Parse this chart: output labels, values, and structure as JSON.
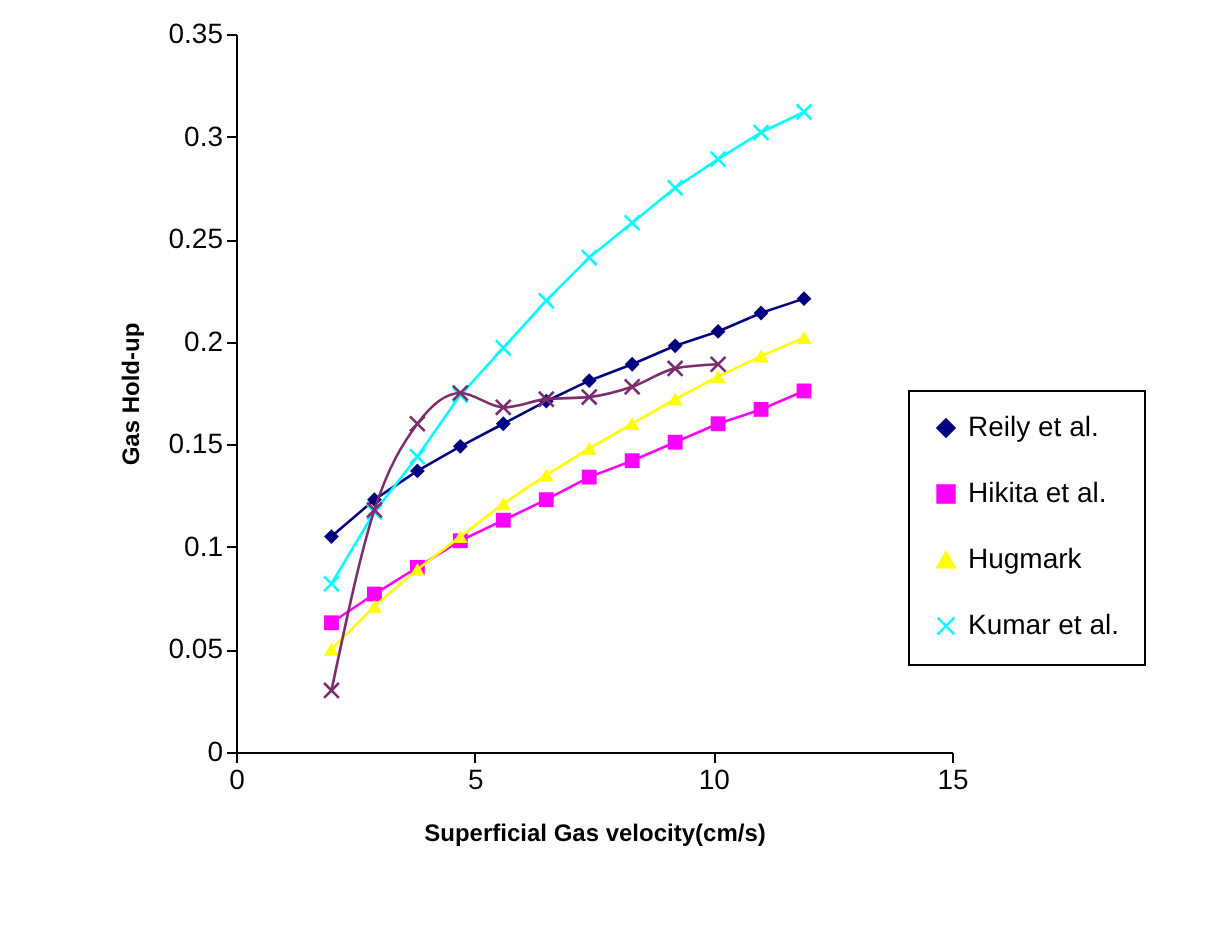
{
  "chart_data": {
    "type": "line",
    "xlabel": "Superficial Gas velocity(cm/s)",
    "ylabel": "Gas Hold-up",
    "x": [
      2,
      2.9,
      3.8,
      4.7,
      5.6,
      6.5,
      7.4,
      8.3,
      9.2,
      10.1,
      11,
      11.9
    ],
    "series": [
      {
        "name": "Reily et al.",
        "color": "#000080",
        "marker": "diamond",
        "values": [
          0.105,
          0.123,
          0.137,
          0.149,
          0.16,
          0.171,
          0.181,
          0.189,
          0.198,
          0.205,
          0.214,
          0.221
        ]
      },
      {
        "name": "Hikita et al.",
        "color": "#ff00ff",
        "marker": "square",
        "values": [
          0.063,
          0.077,
          0.09,
          0.103,
          0.113,
          0.123,
          0.134,
          0.142,
          0.151,
          0.16,
          0.167,
          0.176
        ]
      },
      {
        "name": "Hugmark",
        "color": "#ffff00",
        "marker": "triangle",
        "values": [
          0.05,
          0.071,
          0.089,
          0.105,
          0.121,
          0.135,
          0.148,
          0.16,
          0.172,
          0.183,
          0.193,
          0.202
        ]
      },
      {
        "name": "Kumar et al.",
        "color": "#00ffff",
        "marker": "cross",
        "values": [
          0.082,
          0.117,
          0.144,
          0.174,
          0.197,
          0.22,
          0.241,
          0.258,
          0.275,
          0.289,
          0.302,
          0.312
        ]
      },
      {
        "color": "#7b2c6d",
        "marker": "cross",
        "line_style": "solid",
        "x": [
          2,
          2.9,
          3.8,
          4.7,
          5.6,
          6.5,
          7.4,
          8.3,
          9.2,
          10.1
        ],
        "values": [
          0.03,
          0.118,
          0.16,
          0.175,
          0.168,
          0.172,
          0.173,
          0.178,
          0.187,
          0.189
        ]
      }
    ],
    "xlim": [
      0,
      15
    ],
    "xticks": [
      0,
      5,
      10,
      15
    ],
    "ylim": [
      0,
      0.35
    ],
    "yticks": [
      0,
      0.05,
      0.1,
      0.15,
      0.2,
      0.25,
      0.3,
      0.35
    ],
    "grid": false,
    "legend": "right"
  }
}
